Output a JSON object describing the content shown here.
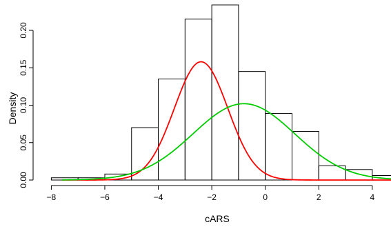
{
  "chart_data": {
    "type": "bar",
    "xlabel": "cARS",
    "ylabel": "Density",
    "xlim": [
      -8.5,
      4.7
    ],
    "ylim": [
      0,
      0.235
    ],
    "x_ticks": [
      -8,
      -6,
      -4,
      -2,
      0,
      2,
      4
    ],
    "x_tick_labels": [
      "−8",
      "−6",
      "−4",
      "−2",
      "0",
      "2",
      "4"
    ],
    "y_ticks": [
      0.0,
      0.05,
      0.1,
      0.15,
      0.2
    ],
    "y_tick_labels": [
      "0.00",
      "0.05",
      "0.10",
      "0.15",
      "0.20"
    ],
    "histogram": {
      "bins": [
        {
          "start": -8,
          "end": -7,
          "density": 0.003
        },
        {
          "start": -7,
          "end": -6,
          "density": 0.003
        },
        {
          "start": -6,
          "end": -5,
          "density": 0.008
        },
        {
          "start": -5,
          "end": -4,
          "density": 0.07
        },
        {
          "start": -4,
          "end": -3,
          "density": 0.135
        },
        {
          "start": -3,
          "end": -2,
          "density": 0.215
        },
        {
          "start": -2,
          "end": -1,
          "density": 0.234
        },
        {
          "start": -1,
          "end": 0,
          "density": 0.145
        },
        {
          "start": 0,
          "end": 1,
          "density": 0.089
        },
        {
          "start": 1,
          "end": 2,
          "density": 0.065
        },
        {
          "start": 2,
          "end": 3,
          "density": 0.019
        },
        {
          "start": 3,
          "end": 4,
          "density": 0.014
        },
        {
          "start": 4,
          "end": 5,
          "density": 0.006
        }
      ]
    },
    "series": [
      {
        "type": "normal-density",
        "color": "#ff0000",
        "mean": -2.4,
        "sd": 1.0,
        "peak": 0.158
      },
      {
        "type": "normal-density",
        "color": "#00cc00",
        "mean": -0.8,
        "sd": 1.9,
        "peak": 0.102
      }
    ]
  }
}
